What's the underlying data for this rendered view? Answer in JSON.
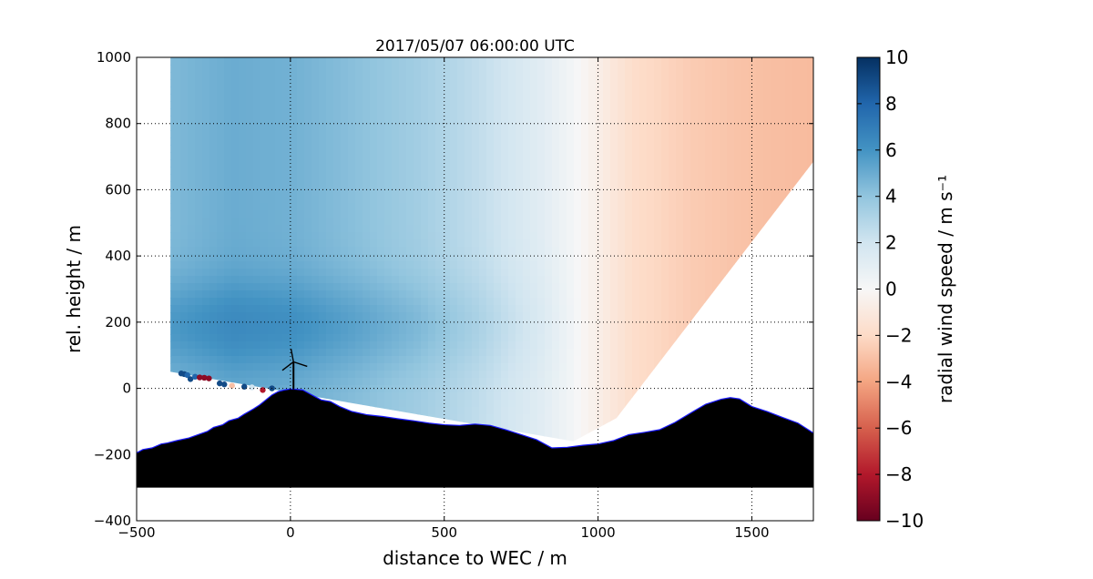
{
  "chart_data": {
    "type": "heatmap",
    "title": "2017/05/07 06:00:00 UTC",
    "xlabel": "distance to WEC / m",
    "ylabel": "rel. height / m",
    "xlim": [
      -500,
      1700
    ],
    "ylim": [
      -400,
      1000
    ],
    "x_ticks": [
      -500,
      0,
      500,
      1000,
      1500
    ],
    "y_ticks": [
      -400,
      -200,
      0,
      200,
      400,
      600,
      800,
      1000
    ],
    "x_tick_labels": [
      "−500",
      "0",
      "500",
      "1000",
      "1500"
    ],
    "y_tick_labels": [
      "−400",
      "−200",
      "0",
      "200",
      "400",
      "600",
      "800",
      "1000"
    ],
    "grid": true,
    "colorbar": {
      "label": "radial wind speed / m s⁻¹",
      "range": [
        -10,
        10
      ],
      "ticks": [
        10,
        8,
        6,
        4,
        2,
        0,
        -2,
        -4,
        -6,
        -8,
        -10
      ],
      "tick_labels": [
        "10",
        "8",
        "6",
        "4",
        "2",
        "0",
        "−2",
        "−4",
        "−6",
        "−8",
        "−10"
      ],
      "colormap": "RdBu",
      "stops": [
        "#67001f",
        "#b2182b",
        "#d6604d",
        "#f4a582",
        "#fddbc7",
        "#f7f7f7",
        "#d1e5f0",
        "#92c5de",
        "#4393c3",
        "#2166ac",
        "#053061"
      ]
    },
    "scan": {
      "origin": [
        -390,
        50
      ],
      "radius": 1550,
      "rhi_edge_endpoint": [
        1060,
        -90
      ],
      "bottom_edge_endpoint": [
        920,
        -160
      ],
      "wind_profile": [
        {
          "x": -390,
          "v": 4.5
        },
        {
          "x": -200,
          "v": 5.0
        },
        {
          "x": 0,
          "v": 4.8
        },
        {
          "x": 200,
          "v": 4.2
        },
        {
          "x": 400,
          "v": 3.5
        },
        {
          "x": 600,
          "v": 2.5
        },
        {
          "x": 800,
          "v": 1.2
        },
        {
          "x": 900,
          "v": 0.3
        },
        {
          "x": 1000,
          "v": -0.8
        },
        {
          "x": 1100,
          "v": -1.8
        },
        {
          "x": 1300,
          "v": -2.6
        },
        {
          "x": 1500,
          "v": -3.0
        },
        {
          "x": 1700,
          "v": -3.2
        }
      ],
      "jet_layer": {
        "z_center": 200,
        "z_halfwidth": 140,
        "boost": 1.3
      }
    },
    "terrain": {
      "x": [
        -500,
        -480,
        -450,
        -420,
        -400,
        -370,
        -330,
        -300,
        -270,
        -250,
        -220,
        -200,
        -170,
        -150,
        -120,
        -100,
        -80,
        -60,
        -40,
        -20,
        0,
        20,
        40,
        60,
        80,
        100,
        130,
        160,
        200,
        250,
        300,
        350,
        400,
        450,
        500,
        550,
        600,
        650,
        700,
        750,
        800,
        850,
        900,
        950,
        1000,
        1050,
        1100,
        1150,
        1200,
        1250,
        1300,
        1350,
        1400,
        1430,
        1460,
        1500,
        1550,
        1600,
        1650,
        1700
      ],
      "z": [
        -195,
        -185,
        -180,
        -168,
        -165,
        -158,
        -150,
        -140,
        -130,
        -118,
        -110,
        -98,
        -90,
        -78,
        -62,
        -50,
        -35,
        -20,
        -10,
        -5,
        -2,
        -3,
        -5,
        -15,
        -25,
        -35,
        -40,
        -55,
        -70,
        -80,
        -85,
        -92,
        -98,
        -105,
        -110,
        -112,
        -108,
        -112,
        -125,
        -140,
        -155,
        -180,
        -178,
        -172,
        -168,
        -158,
        -140,
        -133,
        -125,
        -103,
        -75,
        -48,
        -33,
        -28,
        -32,
        -55,
        -70,
        -88,
        -105,
        -135
      ]
    },
    "wec": {
      "x": 10,
      "hub_height": 80,
      "rotor_radius": 40
    },
    "near_ground_points": [
      {
        "x": -355,
        "z": 45,
        "v": 9
      },
      {
        "x": -345,
        "z": 43,
        "v": 9
      },
      {
        "x": -335,
        "z": 40,
        "v": 8
      },
      {
        "x": -325,
        "z": 28,
        "v": 9
      },
      {
        "x": -310,
        "z": 35,
        "v": 8
      },
      {
        "x": -295,
        "z": 33,
        "v": -9
      },
      {
        "x": -280,
        "z": 32,
        "v": -9
      },
      {
        "x": -265,
        "z": 30,
        "v": -9
      },
      {
        "x": -230,
        "z": 15,
        "v": 9
      },
      {
        "x": -215,
        "z": 12,
        "v": 9
      },
      {
        "x": -190,
        "z": 8,
        "v": -3
      },
      {
        "x": -150,
        "z": 5,
        "v": 9
      },
      {
        "x": -125,
        "z": 3,
        "v": 2
      },
      {
        "x": -90,
        "z": -5,
        "v": -8
      },
      {
        "x": -60,
        "z": 0,
        "v": 9
      }
    ]
  }
}
